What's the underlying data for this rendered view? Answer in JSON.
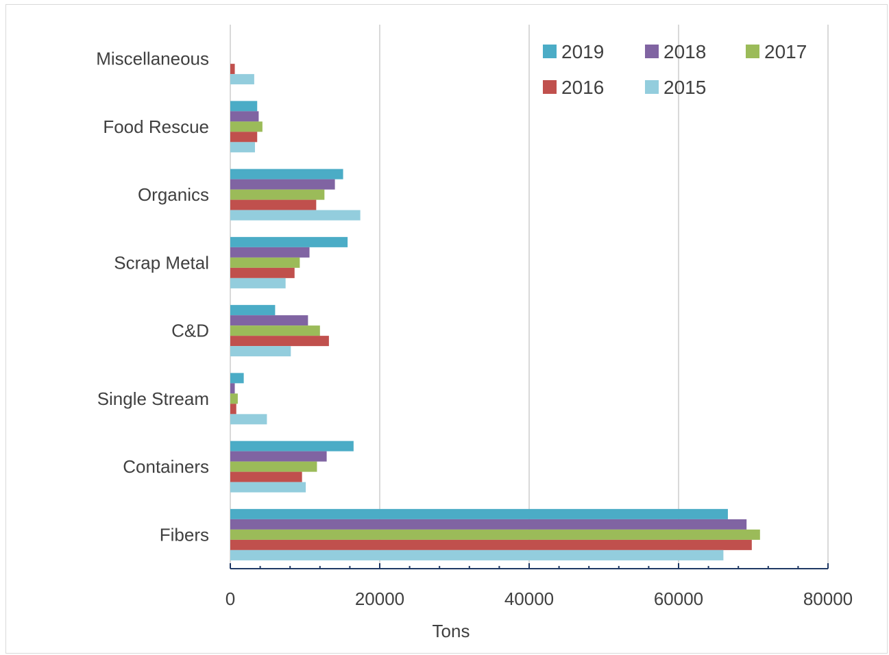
{
  "chart_data": {
    "type": "bar",
    "orientation": "horizontal",
    "categories": [
      "Fibers",
      "Containers",
      "Single Stream",
      "C&D",
      "Scrap Metal",
      "Organics",
      "Food Rescue",
      "Miscellaneous"
    ],
    "series": [
      {
        "name": "2019",
        "color": "#4bacc6",
        "values": [
          66600,
          16500,
          1800,
          6000,
          15700,
          15100,
          3600,
          0
        ]
      },
      {
        "name": "2018",
        "color": "#8064a2",
        "values": [
          69100,
          12900,
          600,
          10400,
          10600,
          14000,
          3800,
          0
        ]
      },
      {
        "name": "2017",
        "color": "#9bbb59",
        "values": [
          70900,
          11600,
          1000,
          12000,
          9300,
          12600,
          4300,
          0
        ]
      },
      {
        "name": "2016",
        "color": "#c0504d",
        "values": [
          69800,
          9600,
          800,
          13200,
          8600,
          11500,
          3600,
          600
        ]
      },
      {
        "name": "2015",
        "color": "#93cddd",
        "values": [
          66000,
          10100,
          4900,
          8100,
          7400,
          17400,
          3300,
          3200
        ]
      }
    ],
    "title": "",
    "xlabel": "Tons",
    "ylabel": "",
    "xlim": [
      0,
      80000
    ],
    "xticks": [
      "0",
      "20000",
      "40000",
      "60000",
      "80000"
    ],
    "grid": "vertical",
    "legend_position": "top-right"
  }
}
